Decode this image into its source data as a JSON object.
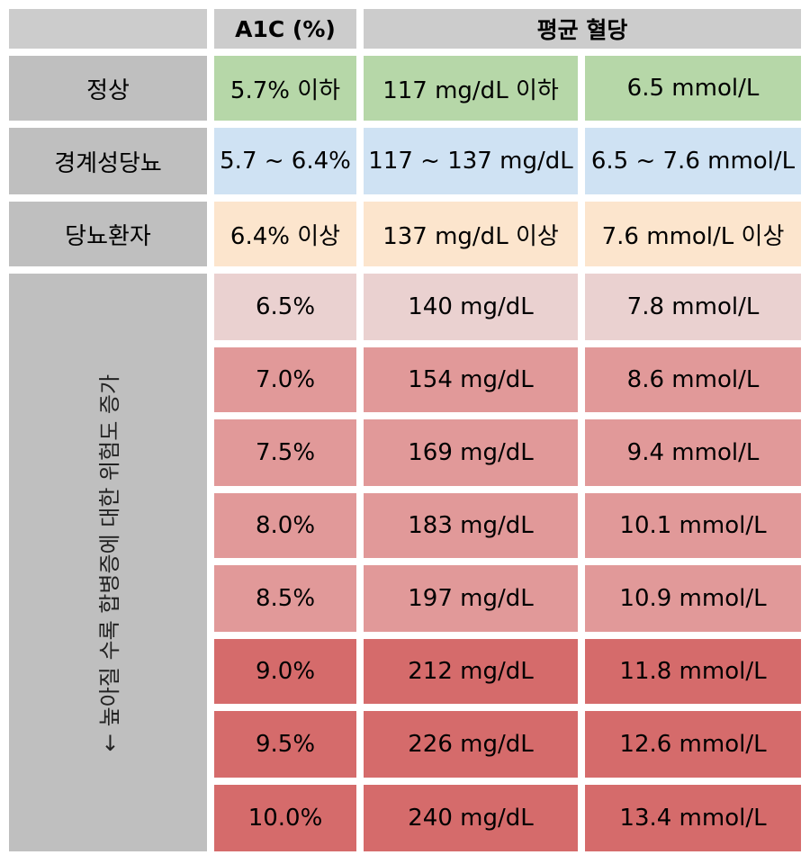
{
  "header": {
    "a1c": "A1C (%)",
    "avg": "평균 혈당"
  },
  "categories": [
    {
      "label": "정상",
      "a1c": "5.7% 이하",
      "mgdl": "117 mg/dL 이하",
      "mmol": "6.5 mmol/L",
      "color": "#b6d7a8"
    },
    {
      "label": "경계성당뇨",
      "a1c": "5.7 ~ 6.4%",
      "mgdl": "117 ~ 137 mg/dL",
      "mmol": "6.5 ~ 7.6 mmol/L",
      "color": "#cfe2f3"
    },
    {
      "label": "당뇨환자",
      "a1c": "6.4% 이상",
      "mgdl": "137 mg/dL 이상",
      "mmol": "7.6 mmol/L 이상",
      "color": "#fce5cd"
    }
  ],
  "risk_label": "← 높아질 수록 합병증에 대한 위험도 증가",
  "risk_rows": [
    {
      "a1c": "6.5%",
      "mgdl": "140 mg/dL",
      "mmol": "7.8 mmol/L",
      "color": "#ead1d0"
    },
    {
      "a1c": "7.0%",
      "mgdl": "154 mg/dL",
      "mmol": "8.6 mmol/L",
      "color": "#e19999"
    },
    {
      "a1c": "7.5%",
      "mgdl": "169 mg/dL",
      "mmol": "9.4 mmol/L",
      "color": "#e19999"
    },
    {
      "a1c": "8.0%",
      "mgdl": "183 mg/dL",
      "mmol": "10.1 mmol/L",
      "color": "#e19999"
    },
    {
      "a1c": "8.5%",
      "mgdl": "197 mg/dL",
      "mmol": "10.9 mmol/L",
      "color": "#e19999"
    },
    {
      "a1c": "9.0%",
      "mgdl": "212 mg/dL",
      "mmol": "11.8 mmol/L",
      "color": "#d56b6b"
    },
    {
      "a1c": "9.5%",
      "mgdl": "226 mg/dL",
      "mmol": "12.6 mmol/L",
      "color": "#d56b6b"
    },
    {
      "a1c": "10.0%",
      "mgdl": "240 mg/dL",
      "mmol": "13.4 mmol/L",
      "color": "#d56b6b"
    }
  ]
}
